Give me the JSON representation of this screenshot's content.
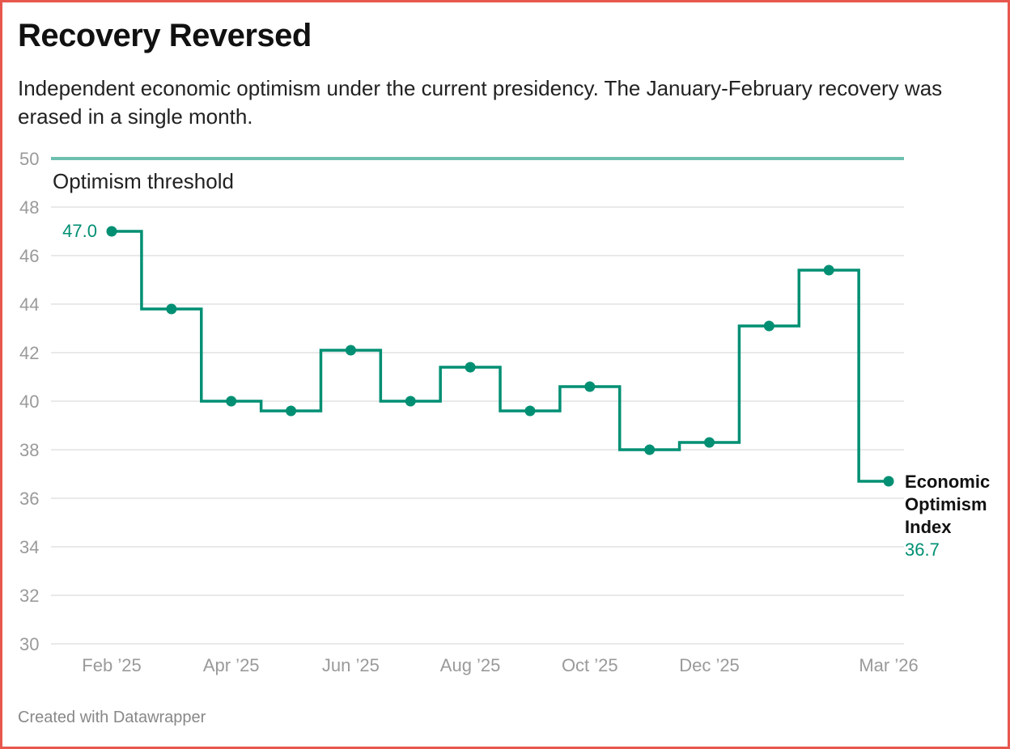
{
  "title": "Recovery Reversed",
  "subtitle": "Independent economic optimism under the current presidency. The January-February recovery was erased in a single month.",
  "footer": "Created with Datawrapper",
  "colors": {
    "line": "#008f73",
    "threshold": "#6dbfae",
    "grid": "#e2e2e2",
    "tick": "#9a9a9a",
    "border": "#e8574d"
  },
  "chart_data": {
    "type": "line",
    "step": true,
    "ylim": [
      30,
      50
    ],
    "yticks": [
      30,
      32,
      34,
      36,
      38,
      40,
      42,
      44,
      46,
      48,
      50
    ],
    "x": [
      "Feb 2025",
      "Mar 2025",
      "Apr 2025",
      "May 2025",
      "Jun 2025",
      "Jul 2025",
      "Aug 2025",
      "Sep 2025",
      "Oct 2025",
      "Nov 2025",
      "Dec 2025",
      "Jan 2026",
      "Feb 2026",
      "Mar 2026"
    ],
    "xtick_labels": [
      {
        "index": 0,
        "label": "Feb ’25"
      },
      {
        "index": 2,
        "label": "Apr ’25"
      },
      {
        "index": 4,
        "label": "Jun ’25"
      },
      {
        "index": 6,
        "label": "Aug ’25"
      },
      {
        "index": 8,
        "label": "Oct ’25"
      },
      {
        "index": 10,
        "label": "Dec ’25"
      },
      {
        "index": 13,
        "label": "Mar ’26"
      }
    ],
    "series": [
      {
        "name": "Economic Optimism Index",
        "values": [
          47.0,
          43.8,
          40.0,
          39.6,
          42.1,
          40.0,
          41.4,
          39.6,
          40.6,
          38.0,
          38.3,
          43.1,
          45.4,
          36.7
        ]
      }
    ],
    "reference_line": {
      "value": 50,
      "label": "Optimism threshold"
    },
    "annotations": {
      "first_value_label": "47.0",
      "series_label_lines": [
        "Economic",
        "Optimism",
        "Index"
      ],
      "last_value_label": "36.7"
    }
  }
}
